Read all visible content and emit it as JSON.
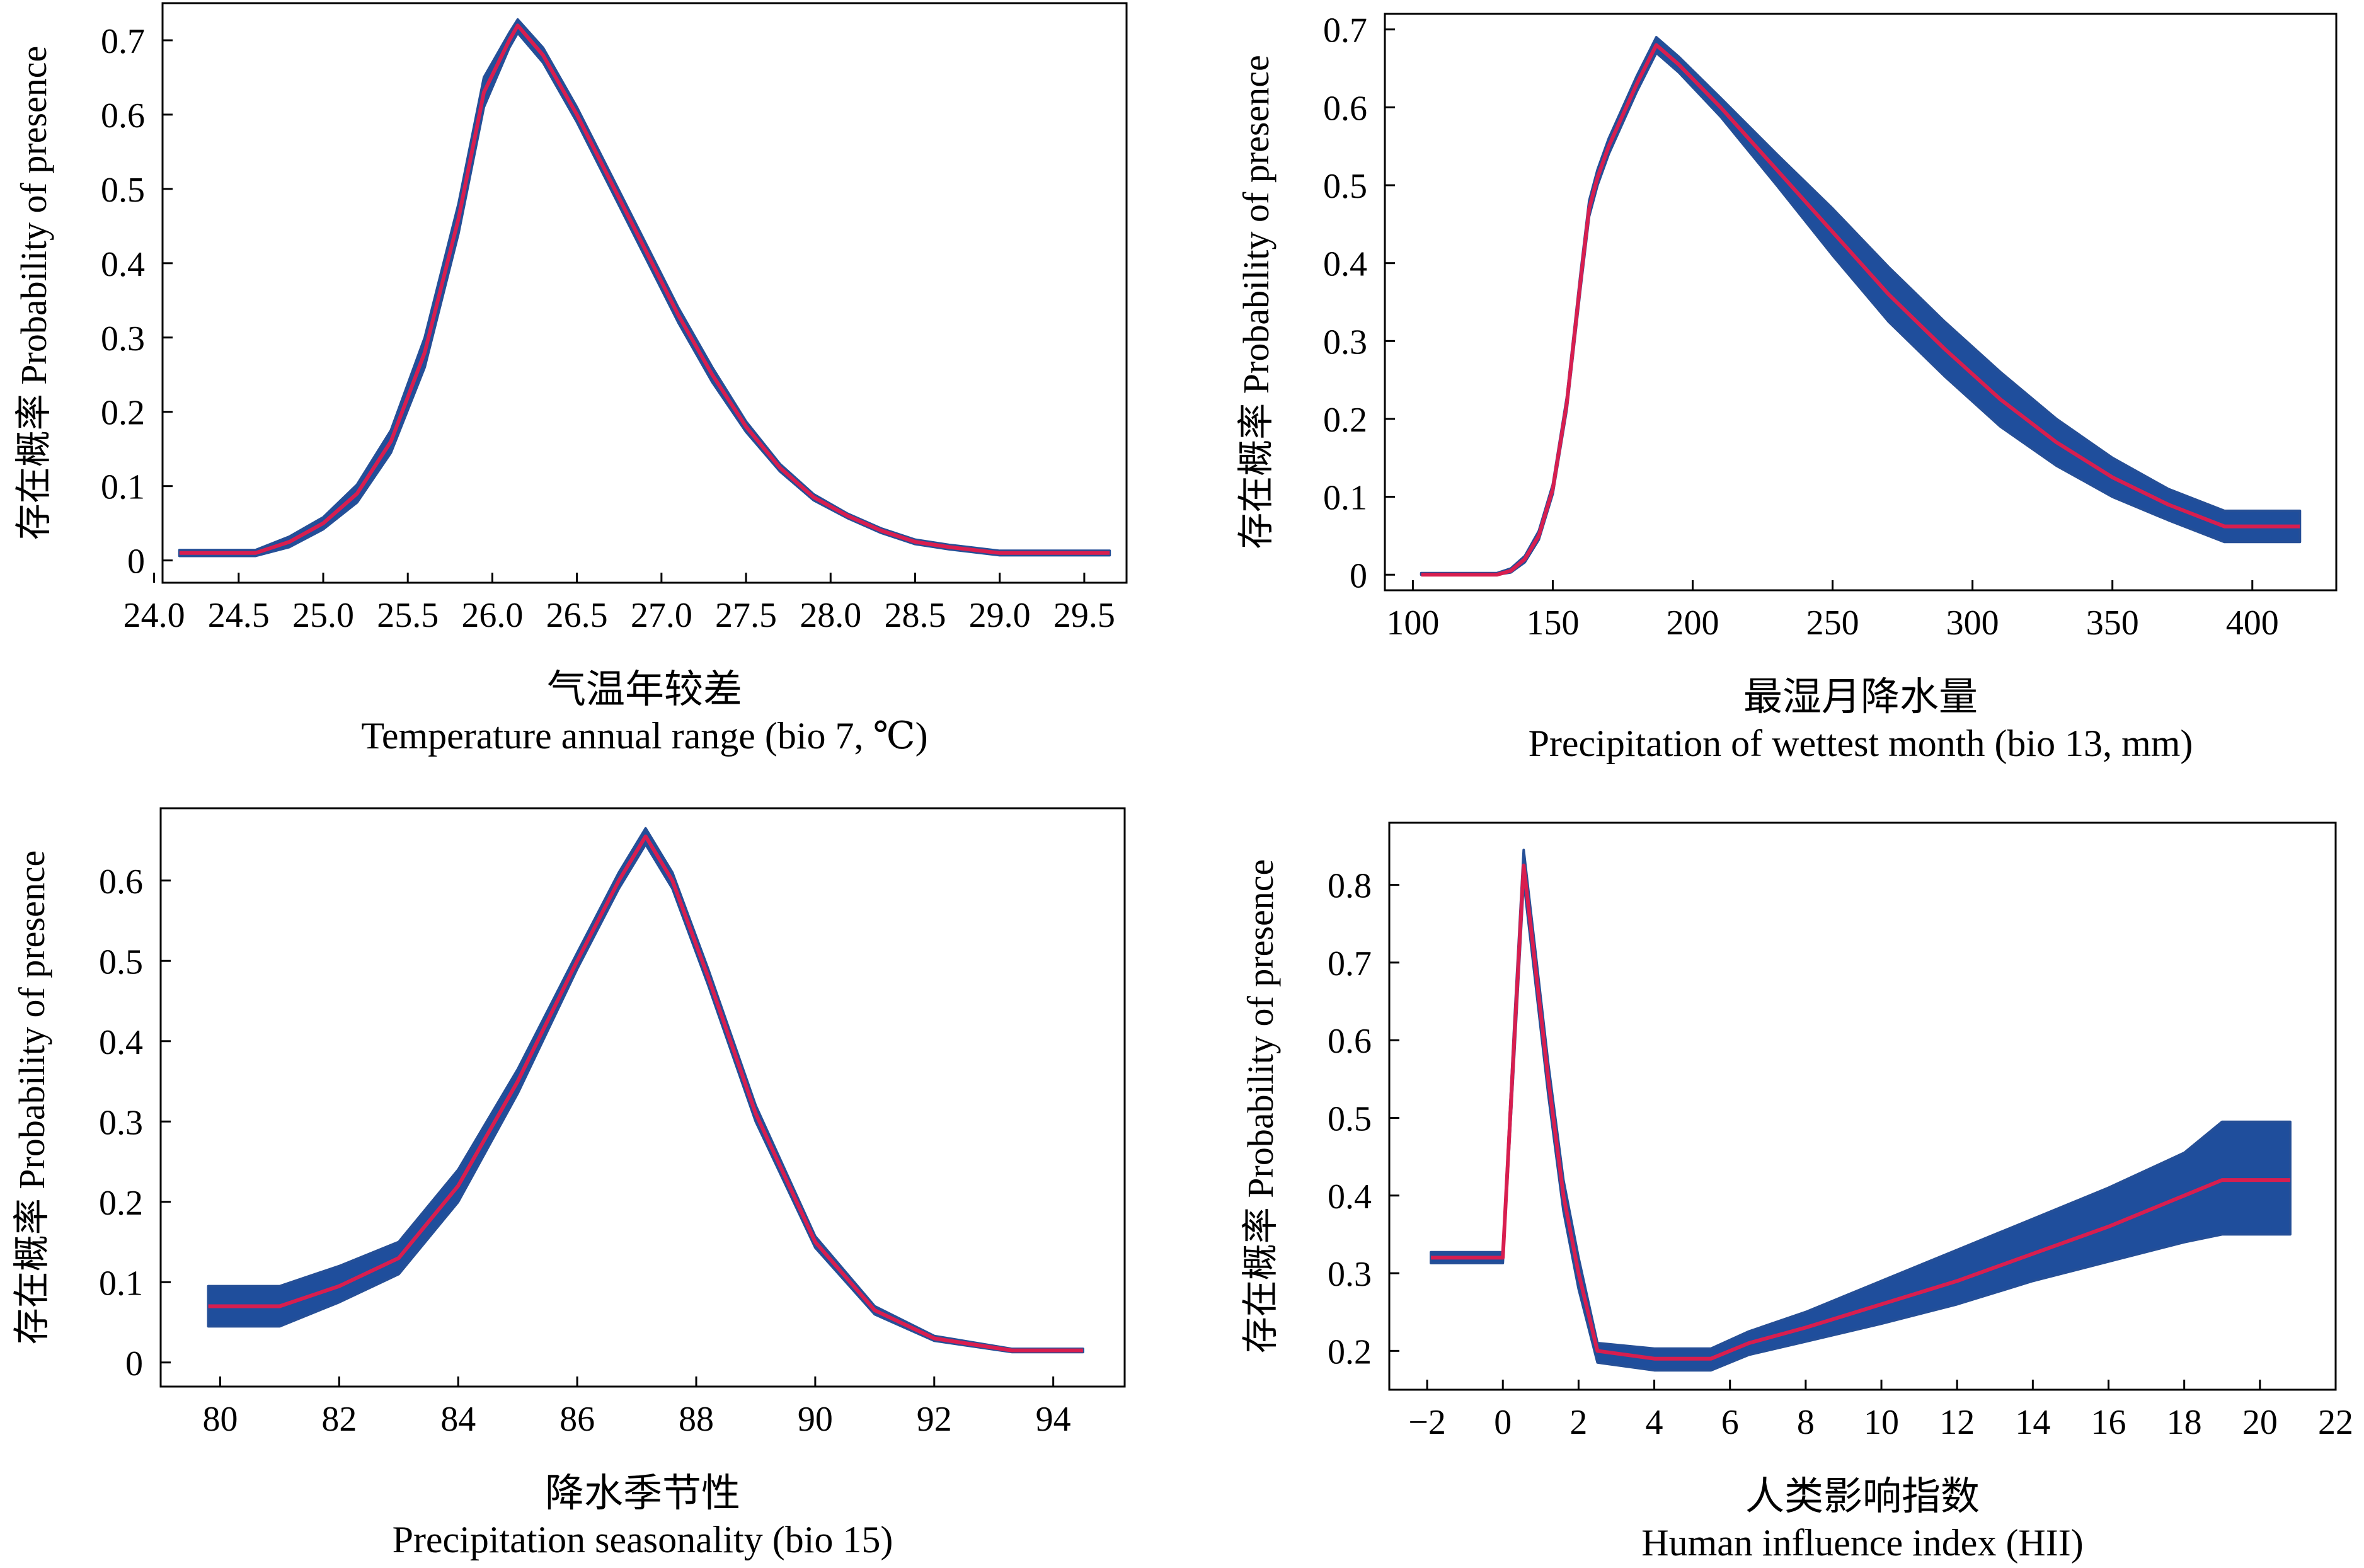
{
  "chart_data": [
    {
      "type": "line",
      "ylabel": "存在概率 Probability of presence",
      "xlabel_cn": "气温年较差",
      "xlabel_en": "Temperature annual range (bio 7, ℃)",
      "xlim": [
        24.05,
        29.75
      ],
      "ylim": [
        -0.03,
        0.75
      ],
      "xticks": [
        24.0,
        24.5,
        25.0,
        25.5,
        26.0,
        26.5,
        27.0,
        27.5,
        28.0,
        28.5,
        29.0,
        29.5
      ],
      "xtick_labels": [
        "24.0",
        "24.5",
        "25.0",
        "25.5",
        "26.0",
        "26.5",
        "27.0",
        "27.5",
        "28.0",
        "28.5",
        "29.0",
        "29.5"
      ],
      "yticks": [
        0,
        0.1,
        0.2,
        0.3,
        0.4,
        0.5,
        0.6,
        0.7
      ],
      "ytick_labels": [
        "0",
        "0.1",
        "0.2",
        "0.3",
        "0.4",
        "0.5",
        "0.6",
        "0.7"
      ],
      "series": [
        {
          "x": [
            24.15,
            24.6,
            24.8,
            25.0,
            25.2,
            25.4,
            25.6,
            25.8,
            25.95,
            26.1,
            26.15,
            26.3,
            26.5,
            26.7,
            26.9,
            27.1,
            27.3,
            27.5,
            27.7,
            27.9,
            28.1,
            28.3,
            28.5,
            28.7,
            29.0,
            29.2,
            29.65
          ],
          "y": [
            0.01,
            0.01,
            0.025,
            0.05,
            0.09,
            0.16,
            0.28,
            0.46,
            0.63,
            0.7,
            0.72,
            0.68,
            0.6,
            0.51,
            0.42,
            0.33,
            0.25,
            0.18,
            0.125,
            0.085,
            0.06,
            0.04,
            0.025,
            0.018,
            0.01,
            0.01,
            0.01
          ],
          "lower": [
            0.006,
            0.006,
            0.018,
            0.042,
            0.078,
            0.145,
            0.26,
            0.44,
            0.61,
            0.69,
            0.71,
            0.67,
            0.59,
            0.5,
            0.41,
            0.32,
            0.24,
            0.173,
            0.12,
            0.081,
            0.057,
            0.037,
            0.022,
            0.015,
            0.007,
            0.007,
            0.007
          ],
          "upper": [
            0.014,
            0.014,
            0.032,
            0.058,
            0.102,
            0.175,
            0.3,
            0.48,
            0.65,
            0.71,
            0.728,
            0.69,
            0.61,
            0.52,
            0.43,
            0.34,
            0.26,
            0.187,
            0.13,
            0.089,
            0.063,
            0.043,
            0.028,
            0.021,
            0.013,
            0.013,
            0.013
          ]
        }
      ]
    },
    {
      "type": "line",
      "ylabel": "存在概率 Probability of presence",
      "xlabel_cn": "最湿月降水量",
      "xlabel_en": "Precipitation of wettest month (bio 13, mm)",
      "xlim": [
        90,
        430
      ],
      "ylim": [
        -0.02,
        0.72
      ],
      "xticks": [
        100,
        150,
        200,
        250,
        300,
        350,
        400
      ],
      "xtick_labels": [
        "100",
        "150",
        "200",
        "250",
        "300",
        "350",
        "400"
      ],
      "yticks": [
        0,
        0.1,
        0.2,
        0.3,
        0.4,
        0.5,
        0.6,
        0.7
      ],
      "ytick_labels": [
        "0",
        "0.1",
        "0.2",
        "0.3",
        "0.4",
        "0.5",
        "0.6",
        "0.7"
      ],
      "series": [
        {
          "x": [
            103,
            130,
            135,
            140,
            145,
            150,
            155,
            160,
            163,
            166,
            170,
            175,
            180,
            187,
            195,
            210,
            230,
            250,
            270,
            290,
            310,
            330,
            350,
            370,
            390,
            417
          ],
          "y": [
            0,
            0,
            0.005,
            0.02,
            0.05,
            0.11,
            0.22,
            0.38,
            0.47,
            0.51,
            0.55,
            0.59,
            0.63,
            0.68,
            0.655,
            0.6,
            0.52,
            0.44,
            0.36,
            0.29,
            0.225,
            0.17,
            0.125,
            0.09,
            0.062,
            0.062
          ],
          "lower": [
            0,
            0,
            0.003,
            0.016,
            0.045,
            0.104,
            0.212,
            0.37,
            0.46,
            0.5,
            0.54,
            0.58,
            0.62,
            0.67,
            0.645,
            0.588,
            0.5,
            0.41,
            0.325,
            0.255,
            0.19,
            0.14,
            0.1,
            0.07,
            0.042,
            0.042
          ],
          "upper": [
            0.002,
            0.002,
            0.008,
            0.024,
            0.056,
            0.116,
            0.228,
            0.39,
            0.48,
            0.52,
            0.56,
            0.6,
            0.64,
            0.69,
            0.665,
            0.612,
            0.54,
            0.47,
            0.395,
            0.325,
            0.26,
            0.2,
            0.15,
            0.11,
            0.082,
            0.082
          ]
        }
      ]
    },
    {
      "type": "line",
      "ylabel": "存在概率 Probability of presence",
      "xlabel_cn": "降水季节性",
      "xlabel_en": "Precipitation seasonality (bio 15)",
      "xlim": [
        79,
        95.2
      ],
      "ylim": [
        -0.03,
        0.69
      ],
      "xticks": [
        80,
        82,
        84,
        86,
        88,
        90,
        92,
        94
      ],
      "xtick_labels": [
        "80",
        "82",
        "84",
        "86",
        "88",
        "90",
        "92",
        "94"
      ],
      "yticks": [
        0,
        0.1,
        0.2,
        0.3,
        0.4,
        0.5,
        0.6
      ],
      "ytick_labels": [
        "0",
        "0.1",
        "0.2",
        "0.3",
        "0.4",
        "0.5",
        "0.6"
      ],
      "series": [
        {
          "x": [
            79.8,
            81.0,
            82.0,
            83.0,
            84.0,
            85.0,
            86.0,
            86.7,
            87.15,
            87.6,
            88.2,
            89.0,
            90.0,
            91.0,
            92.0,
            93.3,
            94.5
          ],
          "y": [
            0.07,
            0.07,
            0.095,
            0.13,
            0.22,
            0.35,
            0.5,
            0.6,
            0.655,
            0.6,
            0.48,
            0.31,
            0.15,
            0.065,
            0.03,
            0.015,
            0.015
          ],
          "lower": [
            0.045,
            0.045,
            0.075,
            0.11,
            0.2,
            0.335,
            0.49,
            0.59,
            0.645,
            0.59,
            0.47,
            0.3,
            0.143,
            0.06,
            0.027,
            0.013,
            0.013
          ],
          "upper": [
            0.095,
            0.095,
            0.12,
            0.15,
            0.24,
            0.365,
            0.51,
            0.61,
            0.665,
            0.61,
            0.49,
            0.32,
            0.157,
            0.07,
            0.033,
            0.017,
            0.017
          ]
        }
      ]
    },
    {
      "type": "line",
      "ylabel": "存在概率 Probability of presence",
      "xlabel_cn": "人类影响指数",
      "xlabel_en": "Human influence index (HII)",
      "xlim": [
        -3,
        22
      ],
      "ylim": [
        0.15,
        0.88
      ],
      "xticks": [
        -2,
        0,
        2,
        4,
        6,
        8,
        10,
        12,
        14,
        16,
        18,
        20,
        22
      ],
      "xtick_labels": [
        "−2",
        "0",
        "2",
        "4",
        "6",
        "8",
        "10",
        "12",
        "14",
        "16",
        "18",
        "20",
        "22"
      ],
      "yticks": [
        0.2,
        0.3,
        0.4,
        0.5,
        0.6,
        0.7,
        0.8
      ],
      "ytick_labels": [
        "0.2",
        "0.3",
        "0.4",
        "0.5",
        "0.6",
        "0.7",
        "0.8"
      ],
      "series": [
        {
          "x": [
            -1.9,
            0,
            0.3,
            0.55,
            0.8,
            1.2,
            1.6,
            2.0,
            2.5,
            4.0,
            5.5,
            6.5,
            8.0,
            10.0,
            12.0,
            14.0,
            16.0,
            18.0,
            19.0,
            20.8
          ],
          "y": [
            0.32,
            0.32,
            0.6,
            0.825,
            0.72,
            0.55,
            0.4,
            0.3,
            0.2,
            0.19,
            0.19,
            0.21,
            0.23,
            0.26,
            0.29,
            0.325,
            0.36,
            0.4,
            0.42,
            0.42
          ],
          "lower": [
            0.313,
            0.313,
            0.58,
            0.805,
            0.7,
            0.53,
            0.38,
            0.28,
            0.185,
            0.175,
            0.175,
            0.195,
            0.212,
            0.235,
            0.26,
            0.29,
            0.315,
            0.34,
            0.35,
            0.35
          ],
          "upper": [
            0.327,
            0.327,
            0.62,
            0.845,
            0.74,
            0.57,
            0.42,
            0.32,
            0.21,
            0.203,
            0.203,
            0.225,
            0.25,
            0.29,
            0.33,
            0.37,
            0.41,
            0.455,
            0.495,
            0.495
          ]
        }
      ]
    }
  ]
}
